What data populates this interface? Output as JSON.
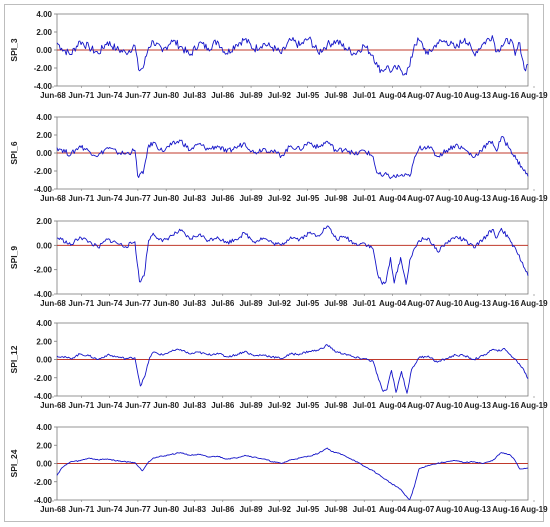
{
  "colors": {
    "series": "#1515c8",
    "zero_line": "#c0392b",
    "box": "#7a7a7a",
    "frame": "#bdbdbd"
  },
  "chart_data": [
    {
      "type": "line",
      "ylabel": "SPI_3",
      "ylim": [
        -4,
        4
      ],
      "yticks": [
        "4.00",
        "2.00",
        "0.00",
        "-2.00",
        "-4.00"
      ],
      "xticks": [
        "Jun-68",
        "Jun-71",
        "Jun-74",
        "Jun-77",
        "Jun-80",
        "Jul-83",
        "Jul-86",
        "Jul-89",
        "Jul-92",
        "Jul-95",
        "Jul-98",
        "Jul-01",
        "Aug-04",
        "Aug-07",
        "Aug-10",
        "Aug-13",
        "Aug-16",
        "Aug-19"
      ],
      "x_range": [
        1968.5,
        2019.9
      ],
      "series": [
        {
          "x": [
            1968.5,
            1969,
            1970,
            1971,
            1972,
            1973,
            1974,
            1975,
            1976,
            1977,
            1977.4,
            1977.9,
            1978.5,
            1979,
            1980,
            1981,
            1982,
            1983,
            1984,
            1985,
            1986,
            1987,
            1988,
            1989,
            1990,
            1991,
            1992,
            1993,
            1994,
            1995,
            1996,
            1997,
            1998,
            1999,
            2000,
            2001,
            2002,
            2003,
            2003.5,
            2004,
            2004.5,
            2005,
            2005.5,
            2006,
            2006.5,
            2007,
            2007.5,
            2008,
            2009,
            2010,
            2011,
            2012,
            2013,
            2014,
            2015,
            2016,
            2016.5,
            2017,
            2018,
            2018.5,
            2019,
            2019.5,
            2019.9
          ],
          "y": [
            0.8,
            0.2,
            -0.5,
            1.0,
            0.3,
            -0.4,
            0.9,
            0.1,
            -0.3,
            0.5,
            -2.2,
            -2.0,
            0.3,
            1.0,
            -0.2,
            1.1,
            0.4,
            -0.6,
            0.8,
            0.2,
            1.0,
            -0.4,
            0.6,
            1.2,
            0.1,
            0.7,
            0.3,
            -0.4,
            1.1,
            0.5,
            1.3,
            -0.3,
            0.6,
            1.0,
            0.2,
            -0.4,
            0.5,
            -0.6,
            -1.9,
            -2.3,
            -1.8,
            -2.4,
            -2.0,
            -2.2,
            -2.6,
            -1.8,
            0.6,
            1.1,
            -0.5,
            0.8,
            1.0,
            0.2,
            1.3,
            -0.4,
            0.7,
            1.6,
            -0.2,
            0.5,
            1.2,
            -0.6,
            0.8,
            -2.1,
            -1.6
          ]
        }
      ]
    },
    {
      "type": "line",
      "ylabel": "SPI_6",
      "ylim": [
        -4,
        4
      ],
      "yticks": [
        "4.00",
        "2.00",
        "0.00",
        "-2.00",
        "-4.00"
      ],
      "xticks": [
        "Jun-68",
        "Jun-71",
        "Jun-74",
        "Jun-77",
        "Jun-80",
        "Jul-83",
        "Jul-86",
        "Jul-89",
        "Jul-92",
        "Jul-95",
        "Jul-98",
        "Jul-01",
        "Aug-04",
        "Aug-07",
        "Aug-10",
        "Aug-13",
        "Aug-16",
        "Aug-19"
      ],
      "x_range": [
        1968.5,
        2019.9
      ],
      "series": [
        {
          "x": [
            1968.5,
            1969,
            1970,
            1971,
            1972,
            1973,
            1974,
            1975,
            1976,
            1977,
            1977.3,
            1977.9,
            1978.4,
            1979,
            1980,
            1981,
            1982,
            1983,
            1984,
            1985,
            1986,
            1987,
            1988,
            1989,
            1990,
            1991,
            1992,
            1993,
            1994,
            1995,
            1996,
            1997,
            1998,
            1999,
            2000,
            2001,
            2002,
            2003,
            2003.4,
            2004,
            2004.5,
            2005,
            2006,
            2007,
            2007.4,
            2008,
            2009,
            2010,
            2011,
            2012,
            2013,
            2014,
            2015,
            2016,
            2016.5,
            2017,
            2018,
            2018.6,
            2019.2,
            2019.9
          ],
          "y": [
            0.6,
            0.4,
            -0.2,
            0.8,
            0.2,
            -0.3,
            0.6,
            0.1,
            -0.1,
            0.3,
            -2.5,
            -2.3,
            0.5,
            1.2,
            0.2,
            0.9,
            1.4,
            0.3,
            1.0,
            0.4,
            0.8,
            0.1,
            0.6,
            1.1,
            0.0,
            0.5,
            0.2,
            -0.3,
            0.8,
            0.4,
            1.2,
            0.6,
            1.3,
            0.2,
            0.5,
            -0.2,
            0.3,
            -0.4,
            -2.2,
            -2.6,
            -2.4,
            -2.7,
            -2.5,
            -2.6,
            -1.0,
            0.5,
            0.8,
            -0.4,
            0.3,
            0.9,
            0.4,
            -0.5,
            0.6,
            1.3,
            0.2,
            1.8,
            0.4,
            -0.7,
            -1.5,
            -2.6
          ]
        }
      ]
    },
    {
      "type": "line",
      "ylabel": "SPI_9",
      "ylim": [
        -4,
        2
      ],
      "yticks": [
        "2.00",
        "0.00",
        "-2.00",
        "-4.00"
      ],
      "xticks": [
        "Jun-68",
        "Jun-71",
        "Jun-74",
        "Jun-77",
        "Jun-80",
        "Jul-83",
        "Jul-86",
        "Jul-89",
        "Jul-92",
        "Jul-95",
        "Jul-98",
        "Jul-01",
        "Aug-04",
        "Aug-07",
        "Aug-10",
        "Aug-13",
        "Aug-16",
        "Aug-19"
      ],
      "x_range": [
        1968.5,
        2019.9
      ],
      "series": [
        {
          "x": [
            1968.5,
            1969,
            1970,
            1971,
            1972,
            1973,
            1974,
            1975,
            1976,
            1977,
            1977.5,
            1978,
            1978.5,
            1979,
            1980,
            1981,
            1982,
            1983,
            1984,
            1985,
            1986,
            1987,
            1988,
            1989,
            1990,
            1991,
            1992,
            1993,
            1994,
            1995,
            1996,
            1997,
            1998,
            1999,
            2000,
            2001,
            2002,
            2003,
            2003.5,
            2004,
            2004.4,
            2004.9,
            2005.3,
            2006,
            2006.6,
            2007,
            2008,
            2009,
            2010,
            2011,
            2012,
            2013,
            2014,
            2015,
            2016,
            2016.5,
            2017,
            2018,
            2018.7,
            2019.3,
            2019.9
          ],
          "y": [
            0.6,
            0.5,
            0.0,
            0.7,
            0.3,
            -0.2,
            0.5,
            0.2,
            -0.1,
            0.3,
            -3.0,
            -2.5,
            0.4,
            1.0,
            0.3,
            0.8,
            1.2,
            0.5,
            0.9,
            0.4,
            0.7,
            0.2,
            0.5,
            1.0,
            0.3,
            0.6,
            0.2,
            0.0,
            0.7,
            0.5,
            1.0,
            0.8,
            1.6,
            0.5,
            0.7,
            0.1,
            0.2,
            -0.3,
            -2.4,
            -3.2,
            -3.0,
            -1.0,
            -3.1,
            -1.0,
            -3.2,
            -1.2,
            0.4,
            0.6,
            -0.5,
            0.2,
            0.7,
            0.4,
            -0.2,
            0.5,
            1.3,
            0.6,
            1.4,
            0.3,
            -0.6,
            -1.4,
            -2.5
          ]
        }
      ]
    },
    {
      "type": "line",
      "ylabel": "SPI_12",
      "ylim": [
        -4,
        4
      ],
      "yticks": [
        "4.00",
        "2.00",
        "0.00",
        "-2.00",
        "-4.00"
      ],
      "xticks": [
        "Jun-68",
        "Jun-71",
        "Jun-74",
        "Jun-77",
        "Jun-80",
        "Jul-83",
        "Jul-86",
        "Jul-89",
        "Jul-92",
        "Jul-95",
        "Jul-98",
        "Jul-01",
        "Aug-04",
        "Aug-07",
        "Aug-10",
        "Aug-13",
        "Aug-16",
        "Aug-19"
      ],
      "x_range": [
        1968.5,
        2019.9
      ],
      "series": [
        {
          "x": [
            1968.5,
            1969,
            1970,
            1971,
            1972,
            1973,
            1974,
            1975,
            1976,
            1977,
            1977.6,
            1978.1,
            1978.6,
            1979,
            1980,
            1981,
            1982,
            1983,
            1984,
            1985,
            1986,
            1987,
            1988,
            1989,
            1990,
            1991,
            1992,
            1993,
            1994,
            1995,
            1996,
            1997,
            1998,
            1999,
            2000,
            2001,
            2002,
            2003,
            2003.6,
            2004.1,
            2004.5,
            2005,
            2005.5,
            2006.1,
            2006.7,
            2007.2,
            2008,
            2009,
            2010,
            2011,
            2012,
            2013,
            2014,
            2015,
            2016,
            2016.6,
            2017.2,
            2018,
            2018.7,
            2019.3,
            2019.9
          ],
          "y": [
            0.4,
            0.3,
            0.1,
            0.6,
            0.4,
            0.0,
            0.5,
            0.3,
            0.1,
            0.2,
            -2.9,
            -1.8,
            0.2,
            0.8,
            0.5,
            0.9,
            1.1,
            0.6,
            0.8,
            0.5,
            0.7,
            0.3,
            0.5,
            0.9,
            0.4,
            0.5,
            0.3,
            0.1,
            0.6,
            0.6,
            0.9,
            1.0,
            1.6,
            0.8,
            0.6,
            0.2,
            0.1,
            -0.2,
            -2.2,
            -3.5,
            -3.3,
            -1.2,
            -3.6,
            -1.3,
            -3.7,
            -1.1,
            0.2,
            0.4,
            -0.3,
            0.1,
            0.5,
            0.4,
            0.0,
            0.4,
            1.1,
            0.9,
            1.2,
            0.5,
            -0.2,
            -0.9,
            -2.1
          ]
        }
      ]
    },
    {
      "type": "line",
      "ylabel": "SPI_24",
      "ylim": [
        -4,
        4
      ],
      "yticks": [
        "4.00",
        "2.00",
        "0.00",
        "-2.00",
        "-4.00"
      ],
      "xticks": [
        "Jun-68",
        "Jun-71",
        "Jun-74",
        "Jun-77",
        "Jun-80",
        "Jul-83",
        "Jul-86",
        "Jul-89",
        "Jul-92",
        "Jul-95",
        "Jul-98",
        "Jul-01",
        "Aug-04",
        "Aug-07",
        "Aug-10",
        "Aug-13",
        "Aug-16",
        "Aug-19"
      ],
      "x_range": [
        1968.5,
        2019.9
      ],
      "series": [
        {
          "x": [
            1968.5,
            1969,
            1970,
            1971,
            1972,
            1973,
            1974,
            1975,
            1976,
            1977,
            1977.8,
            1978.5,
            1979,
            1980,
            1981,
            1982,
            1983,
            1984,
            1985,
            1986,
            1987,
            1988,
            1989,
            1990,
            1991,
            1992,
            1993,
            1994,
            1995,
            1996,
            1997,
            1998,
            1998.5,
            1999,
            2000,
            2001,
            2002,
            2003,
            2004,
            2005,
            2006,
            2006.5,
            2007,
            2007.5,
            2008,
            2009,
            2010,
            2011,
            2012,
            2013,
            2014,
            2015,
            2016,
            2017,
            2018,
            2018.5,
            2019,
            2019.9
          ],
          "y": [
            -1.3,
            -0.5,
            0.2,
            0.3,
            0.6,
            0.4,
            0.5,
            0.3,
            0.2,
            0.1,
            -0.8,
            0.2,
            0.6,
            0.8,
            1.0,
            1.2,
            0.9,
            1.0,
            0.7,
            0.8,
            0.5,
            0.6,
            0.9,
            0.7,
            0.5,
            0.2,
            0.0,
            0.4,
            0.6,
            0.8,
            1.1,
            1.7,
            1.3,
            1.2,
            0.8,
            0.3,
            -0.3,
            -0.8,
            -1.5,
            -2.2,
            -2.8,
            -3.5,
            -4.0,
            -2.5,
            -0.6,
            -0.2,
            0.0,
            0.2,
            0.3,
            0.1,
            0.2,
            0.0,
            0.3,
            1.2,
            0.9,
            0.3,
            -0.6,
            -0.5
          ]
        }
      ]
    }
  ]
}
